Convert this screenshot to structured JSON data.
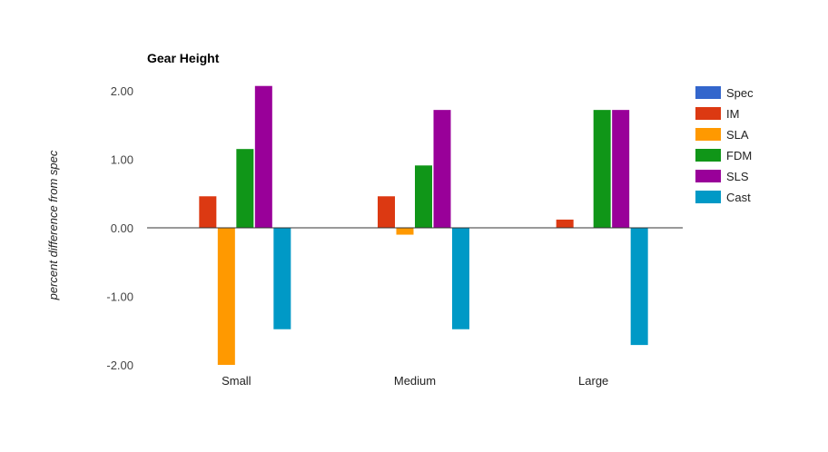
{
  "chart_data": {
    "type": "bar",
    "title": "Gear Height",
    "xlabel": "",
    "ylabel": "percent difference from spec",
    "ylim": [
      -2.0,
      2.0
    ],
    "yticks": [
      "2.00",
      "1.00",
      "0.00",
      "-1.00",
      "-2.00"
    ],
    "ytick_values": [
      2.0,
      1.0,
      0.0,
      -1.0,
      -2.0
    ],
    "grid": false,
    "legend_position": "right",
    "categories": [
      "Small",
      "Medium",
      "Large"
    ],
    "series": [
      {
        "name": "Spec",
        "color": "#3366cc",
        "values": [
          0.0,
          0.0,
          0.0
        ]
      },
      {
        "name": "IM",
        "color": "#dc3912",
        "values": [
          0.46,
          0.46,
          0.12
        ]
      },
      {
        "name": "SLA",
        "color": "#ff9900",
        "values": [
          -2.0,
          -0.1,
          0.0
        ]
      },
      {
        "name": "FDM",
        "color": "#109618",
        "values": [
          1.15,
          0.91,
          1.72
        ]
      },
      {
        "name": "SLS",
        "color": "#990099",
        "values": [
          2.07,
          1.72,
          1.72
        ]
      },
      {
        "name": "Cast",
        "color": "#0099c6",
        "values": [
          -1.48,
          -1.48,
          -1.71
        ]
      }
    ]
  }
}
